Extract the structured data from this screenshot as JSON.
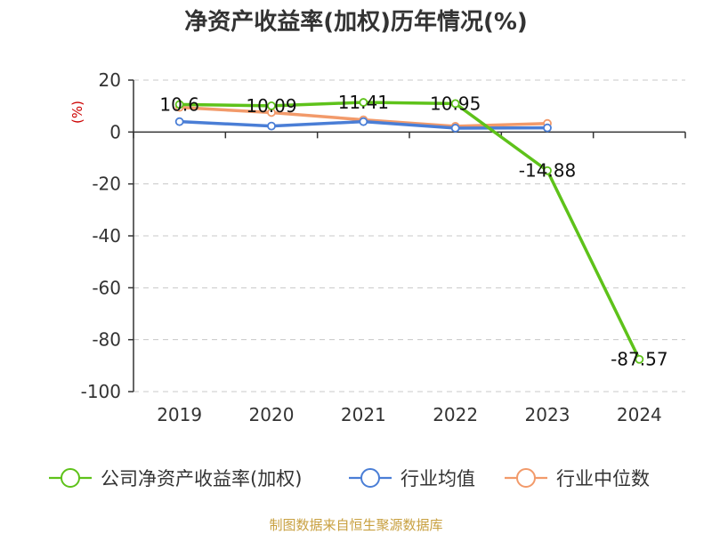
{
  "chart_data": {
    "type": "line",
    "title": "净资产收益率(加权)历年情况(%)",
    "ylabel": "(%)",
    "xlabel": "",
    "categories": [
      "2019",
      "2020",
      "2021",
      "2022",
      "2023",
      "2024"
    ],
    "ylim": [
      -100,
      20
    ],
    "yticks": [
      20,
      0,
      -20,
      -40,
      -60,
      -80,
      -100
    ],
    "grid": true,
    "legend_position": "bottom",
    "series": [
      {
        "name": "公司净资产收益率(加权)",
        "color": "#5ec21a",
        "values": [
          10.6,
          10.09,
          11.41,
          10.95,
          -14.88,
          -87.57
        ],
        "labels": [
          "10.6",
          "10.09",
          "11.41",
          "10.95",
          "-14.88",
          "-87.57"
        ]
      },
      {
        "name": "行业均值",
        "color": "#4a7ed6",
        "values": [
          4.0,
          2.3,
          4.0,
          1.5,
          1.6,
          null
        ]
      },
      {
        "name": "行业中位数",
        "color": "#f29a6a",
        "values": [
          9.5,
          7.5,
          4.7,
          2.2,
          3.3,
          null
        ]
      }
    ],
    "source": "制图数据来自恒生聚源数据库"
  }
}
